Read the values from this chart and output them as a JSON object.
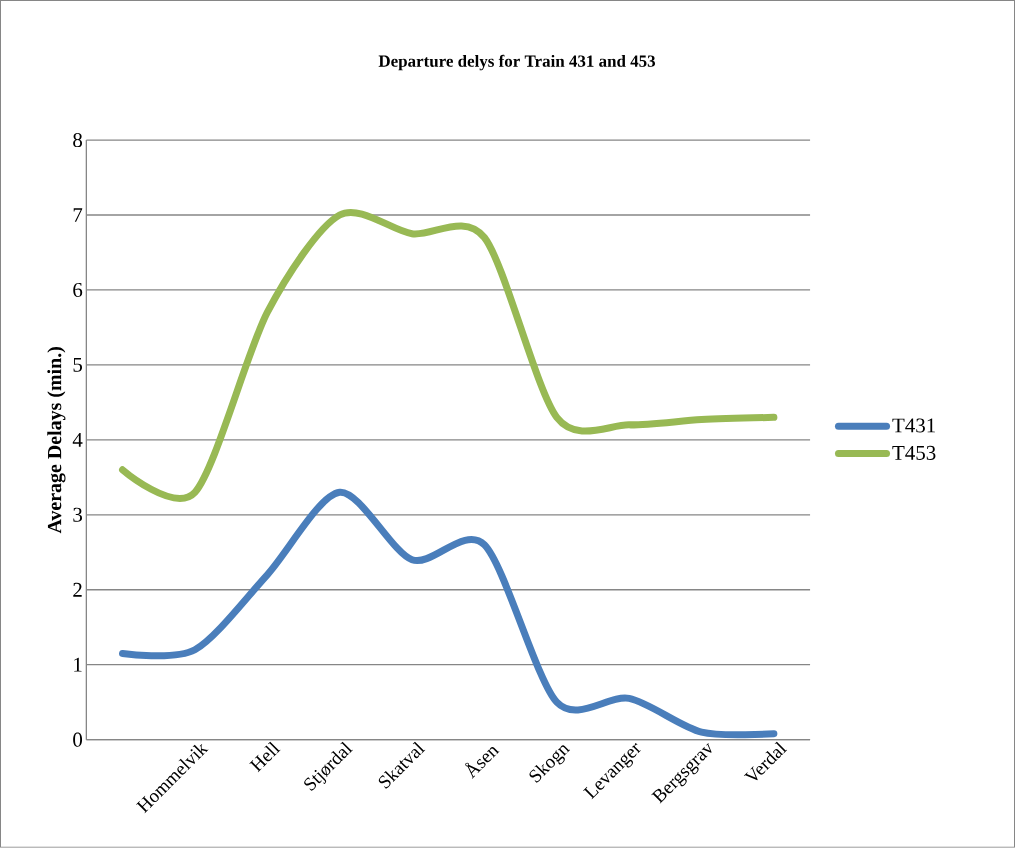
{
  "chart_data": {
    "type": "line",
    "title": "Departure delys for Train 431 and 453",
    "ylabel": "Average Delays (min.)",
    "categories": [
      null,
      "Hommelvik",
      "Hell",
      "Stjørdal",
      "Skatval",
      "Åsen",
      "Skogn",
      "Levanger",
      "Bergsgrav",
      "Verdal"
    ],
    "series": [
      {
        "name": "T431",
        "color": "#4a7ebb",
        "values": [
          1.15,
          1.2,
          2.2,
          3.3,
          2.4,
          2.6,
          0.5,
          0.55,
          0.1,
          0.08
        ]
      },
      {
        "name": "T453",
        "color": "#98b954",
        "values": [
          3.6,
          3.3,
          5.7,
          7.0,
          6.75,
          6.7,
          4.3,
          4.2,
          4.27,
          4.3
        ]
      }
    ],
    "ylim": [
      0,
      8
    ],
    "yticks": [
      0,
      1,
      2,
      3,
      4,
      5,
      6,
      7,
      8
    ],
    "grid": "y",
    "legend": "right",
    "line_style": "solid",
    "marker": "none"
  }
}
